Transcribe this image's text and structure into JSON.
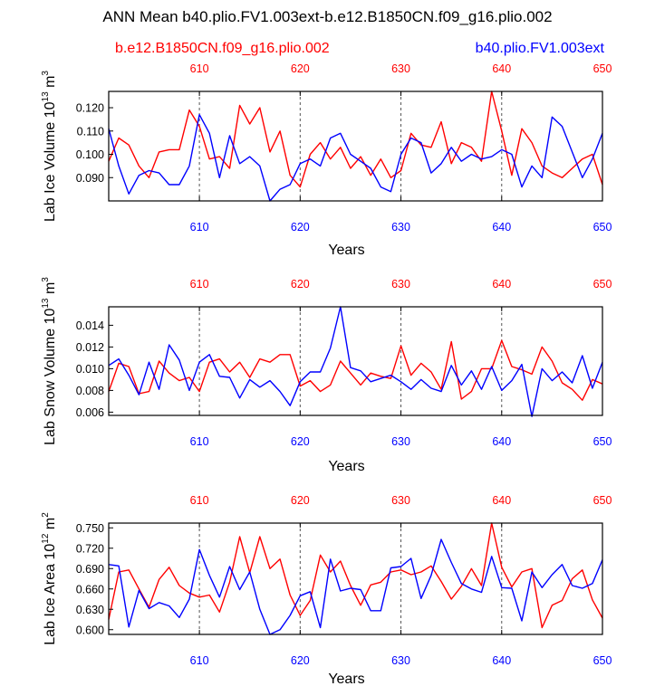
{
  "figure": {
    "title": "ANN Mean b40.plio.FV1.003ext-b.e12.B1850CN.f09_g16.plio.002",
    "legend_left": {
      "label": "b.e12.B1850CN.f09_g16.plio.002",
      "color": "#ff0000"
    },
    "legend_right": {
      "label": "b40.plio.FV1.003ext",
      "color": "#0000ff"
    }
  },
  "chart_data": [
    {
      "type": "line",
      "title": "Lab Ice Volume",
      "ylabel_main": "Lab Ice Volume 10",
      "ylabel_exp": "13",
      "ylabel_unit": " m",
      "ylabel_unit_exp": "3",
      "xlabel": "Years",
      "xlim": [
        601,
        650
      ],
      "ylim": [
        0.08,
        0.127
      ],
      "x_ticks": [
        610,
        620,
        630,
        640,
        650
      ],
      "y_ticks": [
        0.09,
        0.1,
        0.11,
        0.12
      ],
      "y_tick_labels": [
        "0.090",
        "0.100",
        "0.110",
        "0.120"
      ],
      "x_start": 601,
      "series": [
        {
          "name": "b.e12.B1850CN.f09_g16.plio.002",
          "color": "#ff0000",
          "values": [
            0.097,
            0.107,
            0.104,
            0.095,
            0.09,
            0.101,
            0.102,
            0.102,
            0.119,
            0.112,
            0.098,
            0.099,
            0.094,
            0.121,
            0.113,
            0.12,
            0.101,
            0.11,
            0.091,
            0.086,
            0.1,
            0.105,
            0.098,
            0.103,
            0.094,
            0.099,
            0.091,
            0.098,
            0.09,
            0.093,
            0.109,
            0.104,
            0.103,
            0.114,
            0.096,
            0.105,
            0.103,
            0.097,
            0.127,
            0.11,
            0.091,
            0.111,
            0.105,
            0.095,
            0.092,
            0.09,
            0.094,
            0.098,
            0.1,
            0.087
          ]
        },
        {
          "name": "b40.plio.FV1.003ext",
          "color": "#0000ff",
          "values": [
            0.111,
            0.095,
            0.083,
            0.091,
            0.093,
            0.092,
            0.087,
            0.087,
            0.095,
            0.117,
            0.109,
            0.09,
            0.108,
            0.096,
            0.099,
            0.095,
            0.08,
            0.085,
            0.087,
            0.096,
            0.098,
            0.095,
            0.107,
            0.109,
            0.1,
            0.097,
            0.094,
            0.086,
            0.084,
            0.1,
            0.107,
            0.105,
            0.092,
            0.096,
            0.103,
            0.097,
            0.1,
            0.098,
            0.099,
            0.102,
            0.1,
            0.086,
            0.095,
            0.09,
            0.116,
            0.112,
            0.101,
            0.09,
            0.098,
            0.109
          ]
        }
      ]
    },
    {
      "type": "line",
      "title": "Lab Snow Volume",
      "ylabel_main": "Lab Snow Volume 10",
      "ylabel_exp": "13",
      "ylabel_unit": " m",
      "ylabel_unit_exp": "3",
      "xlabel": "Years",
      "xlim": [
        601,
        650
      ],
      "ylim": [
        0.0057,
        0.0157
      ],
      "x_ticks": [
        610,
        620,
        630,
        640,
        650
      ],
      "y_ticks": [
        0.006,
        0.008,
        0.01,
        0.012,
        0.014
      ],
      "y_tick_labels": [
        "0.006",
        "0.008",
        "0.010",
        "0.012",
        "0.014"
      ],
      "x_start": 601,
      "series": [
        {
          "name": "b.e12.B1850CN.f09_g16.plio.002",
          "color": "#ff0000",
          "values": [
            0.0079,
            0.0105,
            0.0102,
            0.0077,
            0.0079,
            0.0107,
            0.0096,
            0.0089,
            0.0092,
            0.0079,
            0.0106,
            0.0109,
            0.0097,
            0.0106,
            0.0092,
            0.0109,
            0.0106,
            0.0113,
            0.0113,
            0.0084,
            0.0089,
            0.0079,
            0.0085,
            0.0107,
            0.0096,
            0.0085,
            0.0096,
            0.0093,
            0.0091,
            0.0121,
            0.0094,
            0.0105,
            0.0097,
            0.0081,
            0.0125,
            0.0072,
            0.0079,
            0.01,
            0.01,
            0.0126,
            0.0102,
            0.0099,
            0.0095,
            0.012,
            0.0107,
            0.0087,
            0.0081,
            0.0071,
            0.009,
            0.0086
          ]
        },
        {
          "name": "b40.plio.FV1.003ext",
          "color": "#0000ff",
          "values": [
            0.0103,
            0.0109,
            0.0094,
            0.0076,
            0.0106,
            0.0081,
            0.0122,
            0.0108,
            0.008,
            0.0106,
            0.0113,
            0.0093,
            0.0092,
            0.0073,
            0.009,
            0.0083,
            0.0089,
            0.0079,
            0.0066,
            0.0088,
            0.0097,
            0.0097,
            0.0119,
            0.0157,
            0.0101,
            0.0098,
            0.0088,
            0.0091,
            0.0094,
            0.0088,
            0.0081,
            0.009,
            0.0082,
            0.0079,
            0.0103,
            0.0085,
            0.0098,
            0.0081,
            0.0102,
            0.008,
            0.0089,
            0.0104,
            0.0056,
            0.01,
            0.0089,
            0.0097,
            0.0087,
            0.0112,
            0.0082,
            0.0106
          ]
        }
      ]
    },
    {
      "type": "line",
      "title": "Lab Ice Area",
      "ylabel_main": "Lab Ice Area 10",
      "ylabel_exp": "12",
      "ylabel_unit": " m",
      "ylabel_unit_exp": "2",
      "xlabel": "Years",
      "xlim": [
        601,
        650
      ],
      "ylim": [
        0.593,
        0.757
      ],
      "x_ticks": [
        610,
        620,
        630,
        640,
        650
      ],
      "y_ticks": [
        0.6,
        0.63,
        0.66,
        0.69,
        0.72,
        0.75
      ],
      "y_tick_labels": [
        "0.600",
        "0.630",
        "0.660",
        "0.690",
        "0.720",
        "0.750"
      ],
      "x_start": 601,
      "series": [
        {
          "name": "b.e12.B1850CN.f09_g16.plio.002",
          "color": "#ff0000",
          "values": [
            0.615,
            0.685,
            0.688,
            0.66,
            0.633,
            0.674,
            0.692,
            0.665,
            0.654,
            0.648,
            0.651,
            0.626,
            0.67,
            0.737,
            0.684,
            0.737,
            0.69,
            0.704,
            0.651,
            0.621,
            0.643,
            0.71,
            0.685,
            0.701,
            0.665,
            0.636,
            0.666,
            0.67,
            0.685,
            0.688,
            0.681,
            0.685,
            0.694,
            0.671,
            0.645,
            0.664,
            0.69,
            0.665,
            0.757,
            0.692,
            0.663,
            0.685,
            0.69,
            0.603,
            0.636,
            0.643,
            0.675,
            0.688,
            0.644,
            0.617
          ]
        },
        {
          "name": "b40.plio.FV1.003ext",
          "color": "#0000ff",
          "values": [
            0.696,
            0.694,
            0.604,
            0.658,
            0.631,
            0.64,
            0.635,
            0.618,
            0.645,
            0.718,
            0.68,
            0.648,
            0.693,
            0.659,
            0.685,
            0.63,
            0.593,
            0.6,
            0.621,
            0.65,
            0.656,
            0.603,
            0.704,
            0.657,
            0.661,
            0.659,
            0.628,
            0.628,
            0.691,
            0.693,
            0.705,
            0.646,
            0.68,
            0.733,
            0.699,
            0.668,
            0.66,
            0.655,
            0.708,
            0.662,
            0.661,
            0.613,
            0.685,
            0.662,
            0.681,
            0.696,
            0.665,
            0.661,
            0.668,
            0.703
          ]
        }
      ]
    }
  ]
}
